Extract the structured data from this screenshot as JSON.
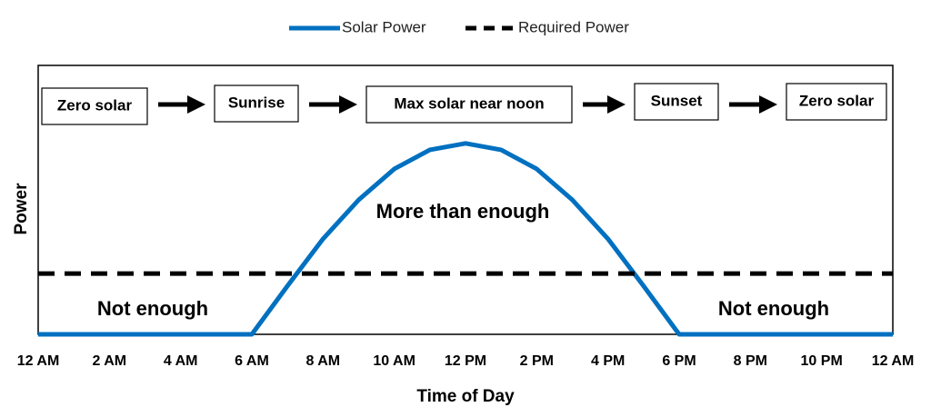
{
  "chart_data": {
    "type": "line",
    "x": [
      0,
      1,
      2,
      3,
      4,
      5,
      6,
      7,
      8,
      9,
      10,
      11,
      12,
      13,
      14,
      15,
      16,
      17,
      18,
      19,
      20,
      21,
      22,
      23,
      24
    ],
    "xlim": [
      0,
      24
    ],
    "xticks": [
      {
        "value": 0,
        "label": "12 AM"
      },
      {
        "value": 2,
        "label": "2 AM"
      },
      {
        "value": 4,
        "label": "4 AM"
      },
      {
        "value": 6,
        "label": "6 AM"
      },
      {
        "value": 8,
        "label": "8 AM"
      },
      {
        "value": 10,
        "label": "10 AM"
      },
      {
        "value": 12,
        "label": "12 PM"
      },
      {
        "value": 14,
        "label": "2 PM"
      },
      {
        "value": 16,
        "label": "4 PM"
      },
      {
        "value": 18,
        "label": "6 PM"
      },
      {
        "value": 20,
        "label": "8 PM"
      },
      {
        "value": 22,
        "label": "10 PM"
      },
      {
        "value": 24,
        "label": "12 AM"
      }
    ],
    "ylim": [
      0,
      1
    ],
    "xlabel": "Time of Day",
    "ylabel": "Power",
    "grid": false,
    "series": [
      {
        "name": "Solar Power",
        "color": "#0070c0",
        "dashed": false,
        "values": [
          0,
          0,
          0,
          0,
          0,
          0,
          0,
          0.18,
          0.355,
          0.5,
          0.615,
          0.686,
          0.71,
          0.686,
          0.615,
          0.5,
          0.355,
          0.18,
          0,
          0,
          0,
          0,
          0,
          0,
          0
        ]
      },
      {
        "name": "Required Power",
        "color": "#000000",
        "dashed": true,
        "values": [
          0.226,
          0.226,
          0.226,
          0.226,
          0.226,
          0.226,
          0.226,
          0.226,
          0.226,
          0.226,
          0.226,
          0.226,
          0.226,
          0.226,
          0.226,
          0.226,
          0.226,
          0.226,
          0.226,
          0.226,
          0.226,
          0.226,
          0.226,
          0.226,
          0.226
        ]
      }
    ],
    "stages": [
      "Zero solar",
      "Sunrise",
      "Max solar near noon",
      "Sunset",
      "Zero solar"
    ],
    "annotations": [
      "Not enough",
      "More than enough",
      "Not enough"
    ]
  }
}
